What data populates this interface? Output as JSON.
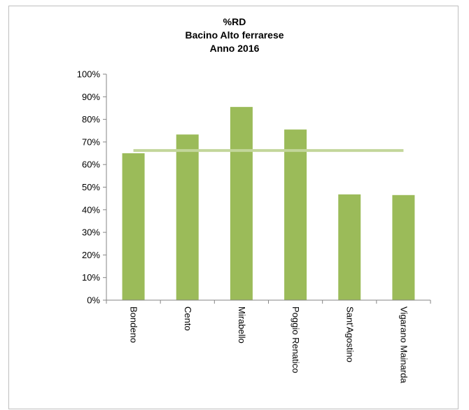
{
  "chart_data": {
    "type": "bar",
    "title_lines": [
      "%RD",
      "Bacino Alto ferrarese",
      "Anno 2016"
    ],
    "categories": [
      "Bondeno",
      "Cento",
      "Mirabello",
      "Poggio Renatico",
      "Sant'Agostino",
      "Vigarano Mainarda"
    ],
    "values": [
      65,
      73.3,
      85.5,
      75.5,
      46.8,
      46.5
    ],
    "reference_line": {
      "value": 66.2
    },
    "ylim": [
      0,
      100
    ],
    "y_ticks": [
      "0%",
      "10%",
      "20%",
      "30%",
      "40%",
      "50%",
      "60%",
      "70%",
      "80%",
      "90%",
      "100%"
    ],
    "grid": false,
    "legend": "none",
    "colors": {
      "bar": "#9bbb59",
      "reference_line": "#c3d69b",
      "axis": "#868686"
    }
  }
}
